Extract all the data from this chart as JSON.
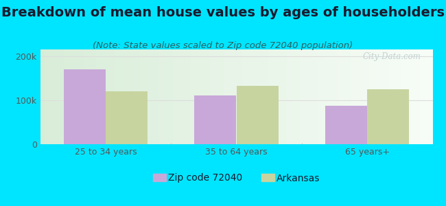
{
  "title": "Breakdown of mean house values by ages of householders",
  "subtitle": "(Note: State values scaled to Zip code 72040 population)",
  "categories": [
    "25 to 34 years",
    "35 to 64 years",
    "65 years+"
  ],
  "zip_values": [
    170000,
    110000,
    88000
  ],
  "state_values": [
    120000,
    132000,
    125000
  ],
  "zip_color": "#c8a8d8",
  "state_color": "#c8d4a0",
  "background_outer": "#00e5ff",
  "ylim": [
    0,
    215000
  ],
  "ytick_labels": [
    "0",
    "100k",
    "200k"
  ],
  "ytick_vals": [
    0,
    100000,
    200000
  ],
  "legend_zip": "Zip code 72040",
  "legend_state": "Arkansas",
  "bar_width": 0.32,
  "title_fontsize": 14,
  "subtitle_fontsize": 9.5,
  "tick_fontsize": 9,
  "legend_fontsize": 10,
  "title_color": "#1a1a2e",
  "subtitle_color": "#2a6060",
  "tick_color": "#555555",
  "watermark": "City-Data.com",
  "grid_color": "#dddddd"
}
